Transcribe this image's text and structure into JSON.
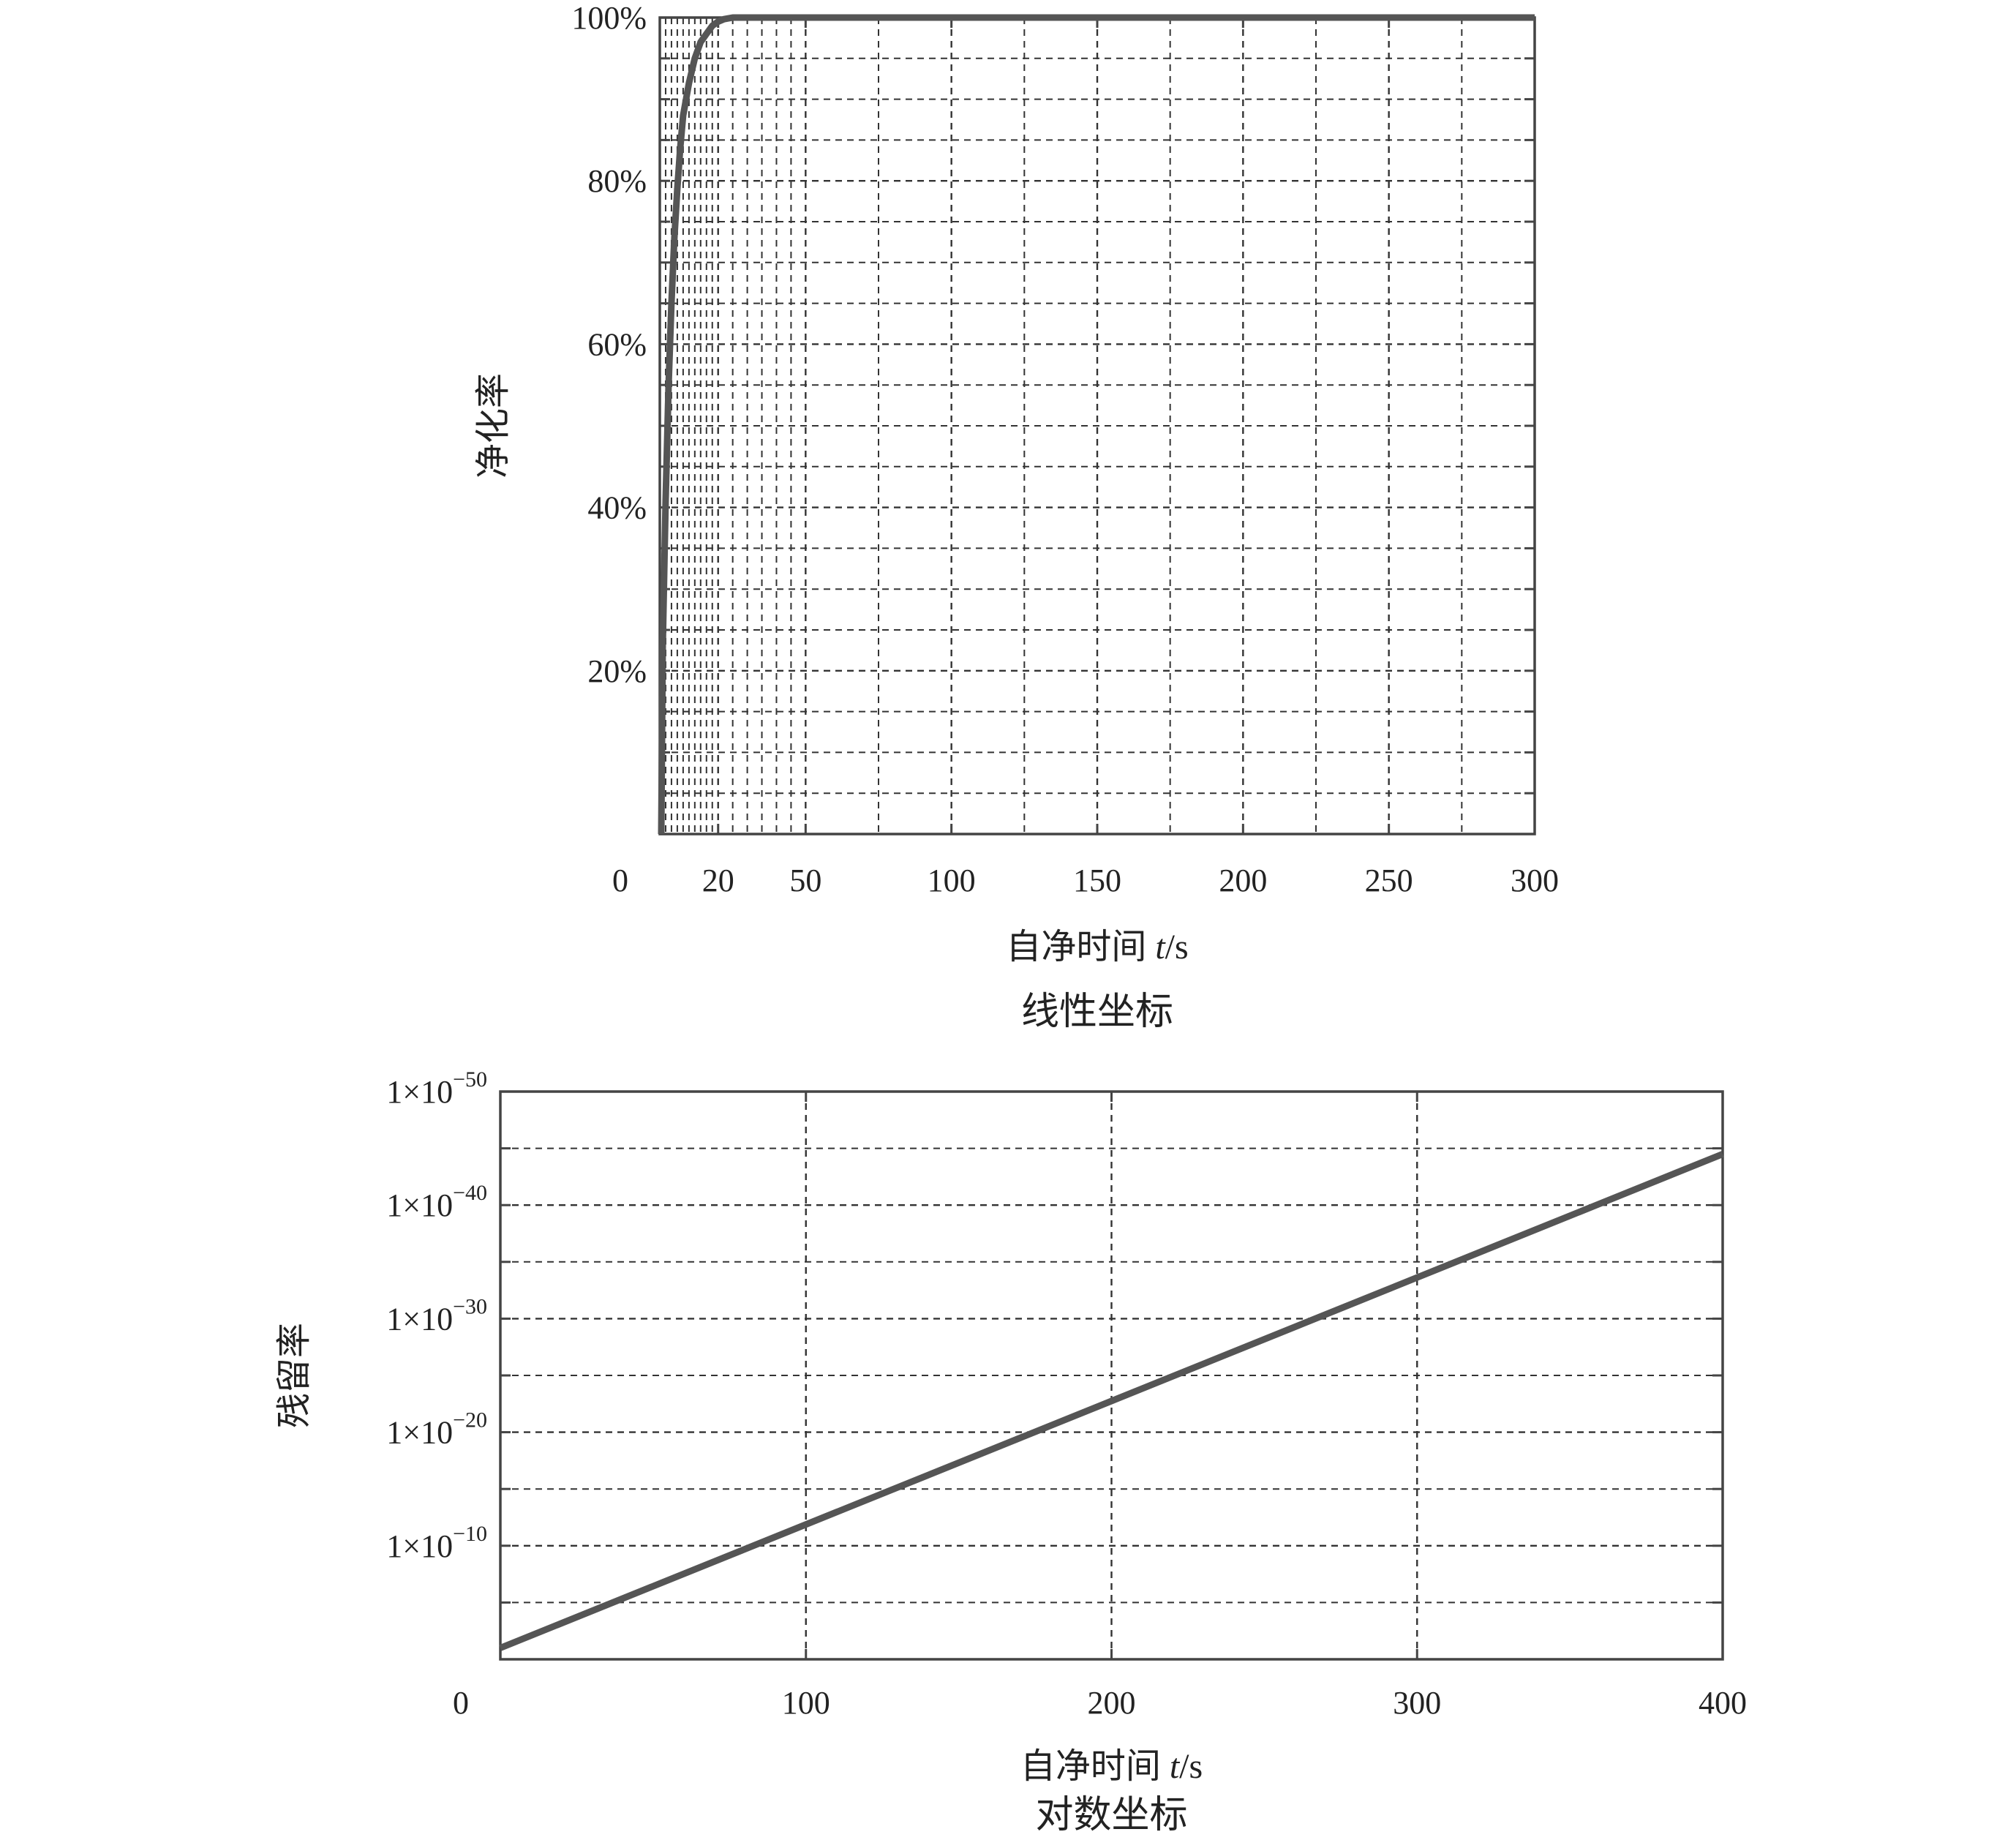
{
  "colors": {
    "line": "#555555",
    "grid": "#333333",
    "frame": "#444444",
    "text": "#222222"
  },
  "chart_data": [
    {
      "id": "linear",
      "type": "line",
      "caption": "线性坐标",
      "xlabel": "自净时间",
      "xlabel_var": "t",
      "xlabel_unit": "/s",
      "ylabel": "净化率",
      "xlim": [
        0,
        300
      ],
      "ylim": [
        0,
        100
      ],
      "y_scale": "linear",
      "xticks": [
        {
          "value": 0,
          "label": "0"
        },
        {
          "value": 20,
          "label": "20"
        },
        {
          "value": 50,
          "label": "50"
        },
        {
          "value": 100,
          "label": "100"
        },
        {
          "value": 150,
          "label": "150"
        },
        {
          "value": 200,
          "label": "200"
        },
        {
          "value": 250,
          "label": "250"
        },
        {
          "value": 300,
          "label": "300"
        }
      ],
      "yticks": [
        {
          "value": 20,
          "label": "20%"
        },
        {
          "value": 40,
          "label": "40%"
        },
        {
          "value": 60,
          "label": "60%"
        },
        {
          "value": 80,
          "label": "80%"
        },
        {
          "value": 100,
          "label": "100%"
        }
      ],
      "x_grid": [
        0,
        2,
        4,
        6,
        8,
        10,
        12,
        14,
        16,
        18,
        20,
        25,
        30,
        35,
        40,
        45,
        50,
        75,
        100,
        125,
        150,
        175,
        200,
        225,
        250,
        275,
        300
      ],
      "y_grid": [
        0,
        5,
        10,
        15,
        20,
        25,
        30,
        35,
        40,
        45,
        50,
        55,
        60,
        65,
        70,
        75,
        80,
        85,
        90,
        95,
        100
      ],
      "grid": true,
      "legend": "none",
      "series": [
        {
          "x": [
            0.5,
            1,
            2,
            3,
            4,
            5,
            6,
            7,
            8,
            9,
            10,
            12,
            14,
            16,
            18,
            20,
            22,
            25,
            30,
            40,
            300
          ],
          "y": [
            0,
            23,
            41,
            55,
            65,
            73,
            79,
            84,
            88,
            90,
            92,
            95,
            97,
            98,
            99,
            99.5,
            99.8,
            100,
            100,
            100,
            100
          ]
        }
      ]
    },
    {
      "id": "log",
      "type": "line",
      "caption": "对数坐标",
      "xlabel": "自净时间",
      "xlabel_var": "t",
      "xlabel_unit": "/s",
      "ylabel": "残留率",
      "xlim": [
        0,
        400
      ],
      "ylim": [
        0,
        50
      ],
      "y_scale": "log (labelled by exponent)",
      "xticks": [
        {
          "value": 0,
          "label": "0"
        },
        {
          "value": 100,
          "label": "100"
        },
        {
          "value": 200,
          "label": "200"
        },
        {
          "value": 300,
          "label": "300"
        },
        {
          "value": 400,
          "label": "400"
        }
      ],
      "yticks": [
        {
          "value": 10,
          "mant": "1×10",
          "exp": "−10"
        },
        {
          "value": 20,
          "mant": "1×10",
          "exp": "−20"
        },
        {
          "value": 30,
          "mant": "1×10",
          "exp": "−30"
        },
        {
          "value": 40,
          "mant": "1×10",
          "exp": "−40"
        },
        {
          "value": 50,
          "mant": "1×10",
          "exp": "−50"
        }
      ],
      "x_grid": [
        0,
        100,
        200,
        300,
        400
      ],
      "y_grid": [
        0,
        5,
        10,
        15,
        20,
        25,
        30,
        35,
        40,
        45,
        50
      ],
      "grid": true,
      "legend": "none",
      "series": [
        {
          "x": [
            0,
            400
          ],
          "y": [
            1,
            44.5
          ]
        }
      ]
    }
  ]
}
